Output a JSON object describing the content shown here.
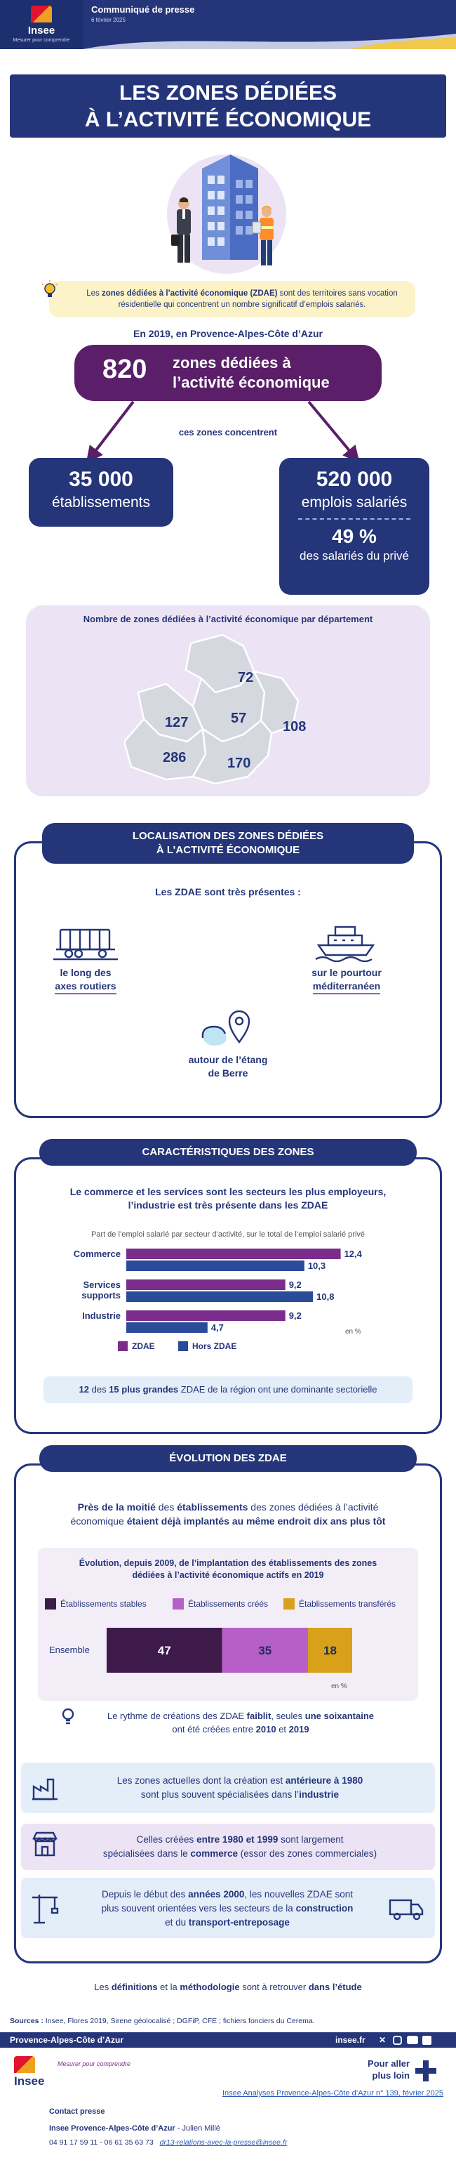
{
  "header": {
    "logo_name": "Insee",
    "logo_subtitle": "Mesurer pour comprendre",
    "doc_type": "Communiqué de presse",
    "date": "6 février 2025"
  },
  "title": {
    "line1": "LES ZONES DÉDIÉES",
    "line2": "À L’ACTIVITÉ ÉCONOMIQUE"
  },
  "intro": {
    "bold": "zones dédiées à l’activité économique (ZDAE)",
    "before": "Les ",
    "after": " sont des territoires sans vocation résidentielle qui concentrent un nombre significatif d’emplois salariés."
  },
  "region_line": "En 2019, en Provence-Alpes-Côte d’Azur",
  "key_figure": {
    "value": "820",
    "label_line1": "zones dédiées à",
    "label_line2": "l’activité économique"
  },
  "concentrate_label": "ces zones concentrent",
  "establishments": {
    "value": "35 000",
    "label": "établissements"
  },
  "jobs": {
    "value": "520 000",
    "label": "emplois salariés",
    "share": "49 %",
    "share_label": "des salariés du privé"
  },
  "map": {
    "title": "Nombre de zones dédiées à l’activité économique par département",
    "values": [
      "72",
      "57",
      "127",
      "108",
      "286",
      "170"
    ]
  },
  "localisation": {
    "title_line1": "LOCALISATION DES ZONES DÉDIÉES",
    "title_line2": "À L’ACTIVITÉ ÉCONOMIQUE",
    "subtitle": "Les ZDAE sont très présentes :",
    "item1": {
      "line1": "le long des",
      "line2": "axes routiers",
      "icon": "truck-icon"
    },
    "item2": {
      "line1": "sur le pourtour",
      "line2": "méditerranéen",
      "icon": "ship-icon"
    },
    "item3": {
      "line1": "autour de l’étang",
      "line2": "de Berre",
      "icon": "map-pin-icon"
    }
  },
  "characteristics": {
    "title": "CARACTÉRISTIQUES DES ZONES",
    "headline_line1": "Le commerce et les services sont les secteurs les plus employeurs,",
    "headline_line2": "l’industrie est très présente dans les ZDAE",
    "chart_note": "Part de l’emploi salarié par secteur d’activité, sur le total de l’emploi salarié privé",
    "unit": "en %",
    "legend_zdae": "ZDAE",
    "legend_hors": "Hors ZDAE",
    "footer_n1": "12",
    "footer_t1": " des ",
    "footer_n2": "15 plus grandes",
    "footer_t2": " ZDAE de la région ont une dominante sectorielle"
  },
  "chart_data": [
    {
      "type": "bar",
      "categories": [
        "Commerce",
        "Services supports",
        "Industrie"
      ],
      "series": [
        {
          "name": "ZDAE",
          "values": [
            12.4,
            9.2,
            9.2
          ]
        },
        {
          "name": "Hors ZDAE",
          "values": [
            10.3,
            10.8,
            4.7
          ]
        }
      ],
      "value_labels": [
        [
          "12,4",
          "9,2",
          "9,2"
        ],
        [
          "10,3",
          "10,8",
          "4,7"
        ]
      ],
      "ylabel": "en %",
      "xlim": [
        0,
        14
      ],
      "colors": [
        "#7b2d8b",
        "#2a4a9a"
      ]
    },
    {
      "type": "bar",
      "stacked": true,
      "categories": [
        "Ensemble"
      ],
      "series": [
        {
          "name": "Établissements stables",
          "values": [
            47
          ]
        },
        {
          "name": "Établissements créés",
          "values": [
            35
          ]
        },
        {
          "name": "Établissements transférés",
          "values": [
            18
          ]
        }
      ],
      "xlim": [
        0,
        100
      ],
      "ylabel": "en %",
      "colors": [
        "#3d1a4a",
        "#b65fc6",
        "#d9a019"
      ]
    }
  ],
  "evolution": {
    "title": "ÉVOLUTION DES ZDAE",
    "headline_a": "Près de la moitié",
    "headline_b": " des ",
    "headline_c": "établissements",
    "headline_d": " des zones dédiées à l’activité économique ",
    "headline_e": "étaient déjà implantés au même endroit dix ans plus tôt",
    "chart_title_line1": "Évolution, depuis 2009, de l’implantation des établissements des zones",
    "chart_title_line2": "dédiées à l’activité économique actifs en 2019",
    "legend": [
      "Établissements stables",
      "Établissements créés",
      "Établissements transférés"
    ],
    "row_label": "Ensemble",
    "unit": "en %",
    "note_a": "Le rythme de créations des ZDAE ",
    "note_b": "faiblit",
    "note_c": ", seules ",
    "note_d": "une soixantaine",
    "note_e": "ont été créées entre ",
    "note_f": "2010",
    "note_g": " et ",
    "note_h": "2019",
    "band1": {
      "a": "Les zones actuelles dont la création est ",
      "b": "antérieure à 1980",
      "c": "sont plus souvent spécialisées dans l’",
      "d": "industrie"
    },
    "band2": {
      "a": "Celles créées ",
      "b": "entre 1980 et 1999",
      "c": " sont largement",
      "d": "spécialisées dans le ",
      "e": "commerce",
      "f": " (essor des zones commerciales)"
    },
    "band3": {
      "a": "Depuis le début des ",
      "b": "années 2000",
      "c": ", les nouvelles ZDAE sont",
      "d": "plus souvent orientées vers les secteurs de la ",
      "e": "construction",
      "f": "et du ",
      "g": "transport-entreposage"
    }
  },
  "study_line": {
    "a": "Les ",
    "b": "définitions",
    "c": " et la ",
    "d": "méthodologie",
    "e": " sont à retrouver ",
    "f": "dans l’étude"
  },
  "sources": {
    "label": "Sources : ",
    "text": "Insee, Flores 2019, Sirene géolocalisé ; DGFiP, CFE ; fichiers fonciers du Cerema."
  },
  "footer": {
    "region": "Provence-Alpes-Côte d’Azur",
    "site": "insee.fr",
    "more_line1": "Pour aller",
    "more_line2": "plus loin",
    "publication": "Insee Analyses Provence-Alpes-Côte d’Azur n° 139, février 2025",
    "contact_title": "Contact presse",
    "contact_org": "Insee Provence-Alpes-Côte d’Azur",
    "contact_person": " - Julien Millé",
    "contact_phones": "04 91 17 59 11 - 06 61 35 63 73",
    "contact_email": "dr13-relations-avec-la-presse@insee.fr",
    "logo_subtitle": "Mesurer pour comprendre"
  },
  "colors": {
    "navy": "#24357a",
    "purple": "#6e2b7c",
    "zdae": "#7b2d8b",
    "hors_zdae": "#2a4a9a",
    "light_yellow": "#fdf3c8",
    "light_purple": "#ece4f4",
    "light_blue": "#e3eef9"
  }
}
